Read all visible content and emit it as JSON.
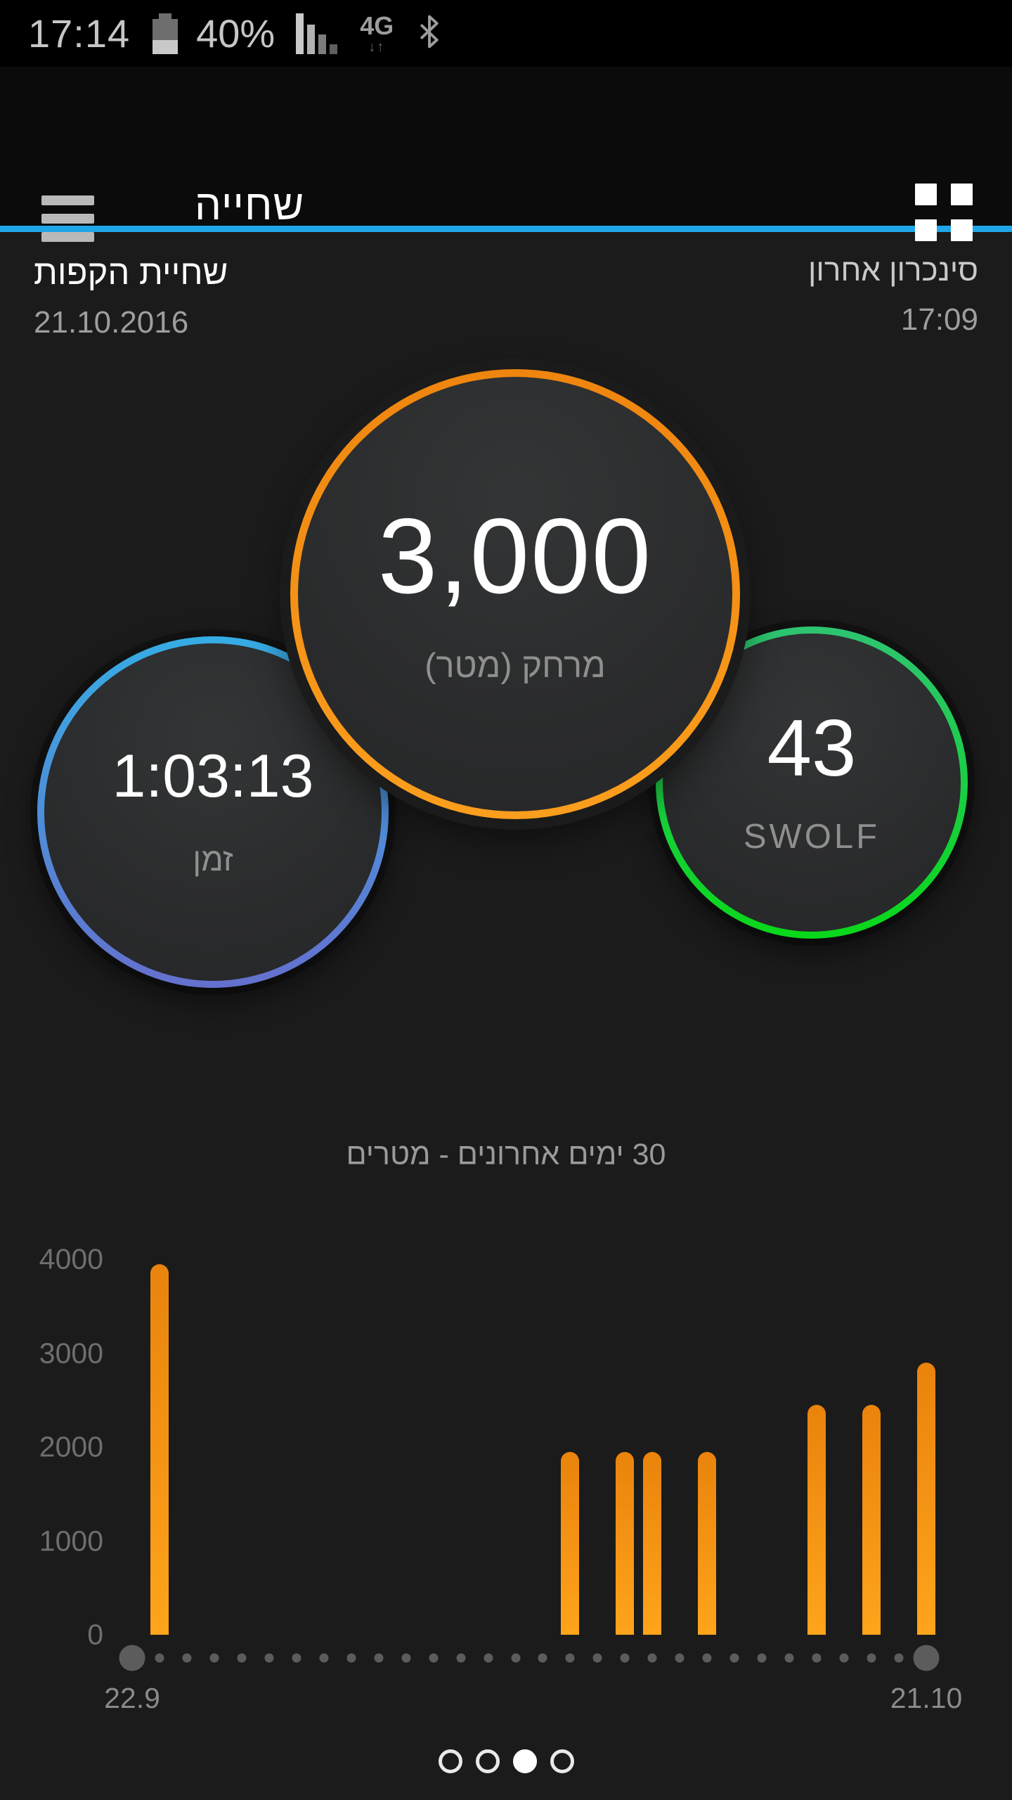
{
  "status_bar": {
    "time": "17:14",
    "battery_percent": "40%",
    "battery_level": 40,
    "network": "4G",
    "data_arrows": "↓↑"
  },
  "app_bar": {
    "title": "שחייה",
    "accent_color": "#1fa6e8"
  },
  "activity_header": {
    "activity_name": "שחיית הקפות",
    "activity_date": "21.10.2016",
    "last_sync_label": "סינכרון אחרון",
    "last_sync_time": "17:09"
  },
  "metrics": {
    "distance": {
      "value": "3,000",
      "label": "מרחק (מטר)",
      "ring_color": "#f7941e"
    },
    "time": {
      "value": "1:03:13",
      "label": "זמן",
      "ring_color_top": "#36ace4",
      "ring_color_bottom": "#6570ce"
    },
    "swolf": {
      "value": "43",
      "label": "SWOLF",
      "ring_color_top": "#2ec471",
      "ring_color_bottom": "#09d81a"
    }
  },
  "chart_data": {
    "type": "bar",
    "title": "30 ימים אחרונים - מטרים",
    "ylabel": "",
    "xlabel": "",
    "ylim": [
      0,
      4000
    ],
    "yticks": [
      0,
      1000,
      2000,
      3000,
      4000
    ],
    "num_days": 30,
    "x_start_label": "22.9",
    "x_end_label": "21.10",
    "bar_color": "#f7941e",
    "grid": false,
    "bars": [
      {
        "day_index": 1,
        "value": 3950
      },
      {
        "day_index": 16,
        "value": 1950
      },
      {
        "day_index": 18,
        "value": 1950
      },
      {
        "day_index": 19,
        "value": 1950
      },
      {
        "day_index": 21,
        "value": 1950
      },
      {
        "day_index": 25,
        "value": 2450
      },
      {
        "day_index": 27,
        "value": 2450
      },
      {
        "day_index": 29,
        "value": 2900
      }
    ]
  },
  "page_indicator": {
    "count": 4,
    "active_index": 2
  }
}
